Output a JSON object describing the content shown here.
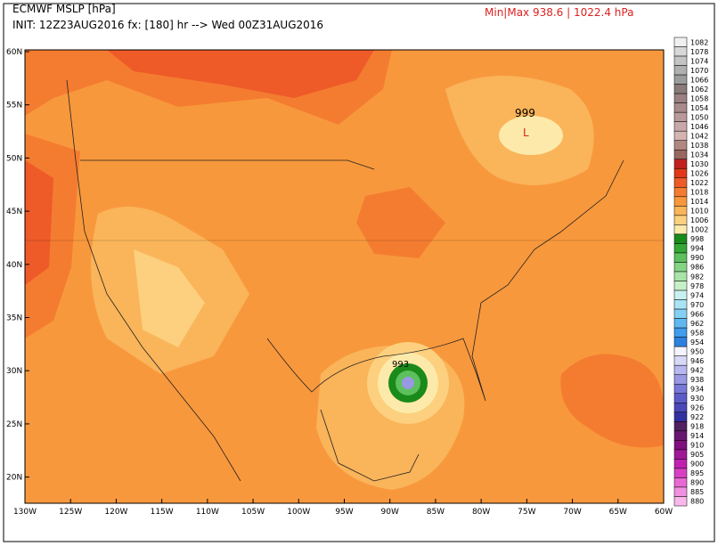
{
  "header": {
    "title": "ECMWF MSLP [hPa]",
    "init": "INIT: 12Z23AUG2016 fx: [180] hr --> Wed 00Z31AUG2016",
    "minmax": "Min|Max 938.6 | 1022.4 hPa"
  },
  "axes": {
    "lat_labels": [
      "60N",
      "55N",
      "50N",
      "45N",
      "40N",
      "35N",
      "30N",
      "25N",
      "20N"
    ],
    "lon_labels": [
      "130W",
      "125W",
      "120W",
      "115W",
      "110W",
      "105W",
      "100W",
      "95W",
      "90W",
      "85W",
      "80W",
      "75W",
      "70W",
      "65W",
      "60W"
    ]
  },
  "map_labels": {
    "low_value": "999",
    "low_letter": "L",
    "hurricane_value": "993"
  },
  "colorbar": [
    {
      "label": 1082,
      "color": "#f0f0f0"
    },
    {
      "label": 1078,
      "color": "#d8d8d8"
    },
    {
      "label": 1074,
      "color": "#c4c4c4"
    },
    {
      "label": 1070,
      "color": "#b0b0b0"
    },
    {
      "label": 1066,
      "color": "#9c9c9c"
    },
    {
      "label": 1062,
      "color": "#8a7a7a"
    },
    {
      "label": 1058,
      "color": "#9a8080"
    },
    {
      "label": 1054,
      "color": "#a88a8a"
    },
    {
      "label": 1050,
      "color": "#b89898"
    },
    {
      "label": 1046,
      "color": "#c8a8a8"
    },
    {
      "label": 1042,
      "color": "#d4b4b0"
    },
    {
      "label": 1038,
      "color": "#b08880"
    },
    {
      "label": 1034,
      "color": "#986860"
    },
    {
      "label": 1030,
      "color": "#c02020"
    },
    {
      "label": 1026,
      "color": "#e03818"
    },
    {
      "label": 1022,
      "color": "#ee5a28"
    },
    {
      "label": 1018,
      "color": "#f47c30"
    },
    {
      "label": 1014,
      "color": "#f8983c"
    },
    {
      "label": 1010,
      "color": "#fab45a"
    },
    {
      "label": 1006,
      "color": "#fcd07e"
    },
    {
      "label": 1002,
      "color": "#fdeaaa"
    },
    {
      "label": 998,
      "color": "#1a8a1a"
    },
    {
      "label": 994,
      "color": "#34a834"
    },
    {
      "label": 990,
      "color": "#5cc05c"
    },
    {
      "label": 986,
      "color": "#84d484"
    },
    {
      "label": 982,
      "color": "#a8e4a8"
    },
    {
      "label": 978,
      "color": "#c8f0c8"
    },
    {
      "label": 974,
      "color": "#c8f0f0"
    },
    {
      "label": 970,
      "color": "#a8e4f4"
    },
    {
      "label": 966,
      "color": "#84d0f4"
    },
    {
      "label": 962,
      "color": "#60b8f0"
    },
    {
      "label": 958,
      "color": "#409cec"
    },
    {
      "label": 954,
      "color": "#2c80e0"
    },
    {
      "label": 950,
      "color": "#f4f4ff"
    },
    {
      "label": 946,
      "color": "#d8d8f8"
    },
    {
      "label": 942,
      "color": "#b8b8f0"
    },
    {
      "label": 938,
      "color": "#9898e4"
    },
    {
      "label": 934,
      "color": "#7878d8"
    },
    {
      "label": 930,
      "color": "#5c5cc8"
    },
    {
      "label": 926,
      "color": "#4848b8"
    },
    {
      "label": 922,
      "color": "#3030a0"
    },
    {
      "label": 918,
      "color": "#502060"
    },
    {
      "label": 914,
      "color": "#681870"
    },
    {
      "label": 910,
      "color": "#801080"
    },
    {
      "label": 905,
      "color": "#a01898"
    },
    {
      "label": 900,
      "color": "#c020b0"
    },
    {
      "label": 895,
      "color": "#d840c4"
    },
    {
      "label": 890,
      "color": "#e868d4"
    },
    {
      "label": 885,
      "color": "#f090e0"
    },
    {
      "label": 880,
      "color": "#f8b8ec"
    }
  ]
}
